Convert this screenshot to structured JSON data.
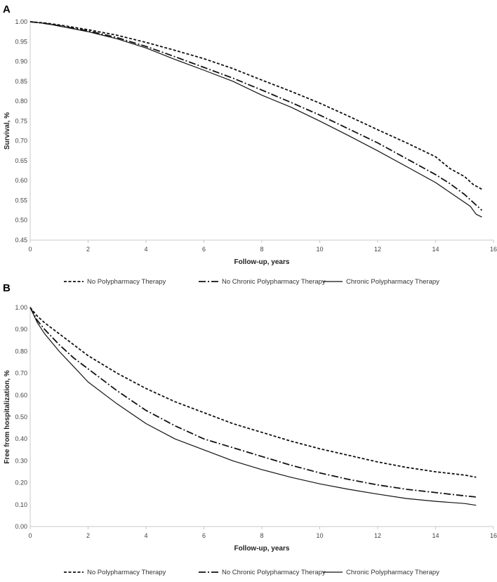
{
  "figure": {
    "chart_data": [
      {
        "type": "line",
        "panel": "A",
        "xlabel": "Follow-up, years",
        "ylabel": "Survival, %",
        "xlim": [
          0,
          16
        ],
        "ylim": [
          0.45,
          1.0
        ],
        "x_ticks": [
          "0",
          "2",
          "4",
          "6",
          "8",
          "10",
          "12",
          "14",
          "16"
        ],
        "y_ticks": [
          "0.45",
          "0.50",
          "0.55",
          "0.60",
          "0.65",
          "0.70",
          "0.75",
          "0.80",
          "0.85",
          "0.90",
          "0.95",
          "1.00"
        ],
        "legend_position": "bottom",
        "grid": false,
        "series": [
          {
            "name": "No Polypharmacy Therapy",
            "dash": "dashed",
            "x": [
              0,
              0.5,
              1,
              2,
              3,
              4,
              5,
              6,
              7,
              8,
              9,
              10,
              11,
              12,
              13,
              14,
              14.5,
              15,
              15.3,
              15.6
            ],
            "y": [
              1.0,
              0.997,
              0.992,
              0.98,
              0.966,
              0.948,
              0.928,
              0.907,
              0.882,
              0.853,
              0.825,
              0.795,
              0.762,
              0.728,
              0.695,
              0.66,
              0.63,
              0.61,
              0.59,
              0.578
            ]
          },
          {
            "name": "No Chronic Polypharmacy Therapy",
            "dash": "dashdot",
            "x": [
              0,
              0.5,
              1,
              2,
              3,
              4,
              5,
              6,
              7,
              8,
              9,
              10,
              11,
              12,
              13,
              14,
              14.5,
              15,
              15.3,
              15.6
            ],
            "y": [
              1.0,
              0.996,
              0.99,
              0.977,
              0.96,
              0.938,
              0.912,
              0.885,
              0.858,
              0.828,
              0.797,
              0.765,
              0.73,
              0.695,
              0.655,
              0.615,
              0.592,
              0.565,
              0.545,
              0.525
            ]
          },
          {
            "name": "Chronic Polypharmacy Therapy",
            "dash": "solid",
            "x": [
              0,
              0.5,
              1,
              2,
              3,
              4,
              5,
              6,
              7,
              8,
              9,
              10,
              11,
              12,
              13,
              14,
              14.5,
              15,
              15.2,
              15.4,
              15.6
            ],
            "y": [
              1.0,
              0.996,
              0.989,
              0.975,
              0.957,
              0.934,
              0.905,
              0.878,
              0.85,
              0.815,
              0.785,
              0.75,
              0.713,
              0.675,
              0.635,
              0.595,
              0.57,
              0.545,
              0.535,
              0.515,
              0.508
            ]
          }
        ]
      },
      {
        "type": "line",
        "panel": "B",
        "xlabel": "Follow-up, years",
        "ylabel": "Free from hospitalization, %",
        "xlim": [
          0,
          16
        ],
        "ylim": [
          0.0,
          1.0
        ],
        "x_ticks": [
          "0",
          "2",
          "4",
          "6",
          "8",
          "10",
          "12",
          "14",
          "16"
        ],
        "y_ticks": [
          "0.00",
          "0.10",
          "0.20",
          "0.30",
          "0.40",
          "0.50",
          "0.60",
          "0.70",
          "0.80",
          "0.90",
          "1.00"
        ],
        "legend_position": "bottom",
        "grid": false,
        "series": [
          {
            "name": "No Polypharmacy Therapy",
            "dash": "dashed",
            "x": [
              0,
              0.25,
              0.5,
              1,
              1.5,
              2,
              3,
              4,
              5,
              6,
              7,
              8,
              9,
              10,
              11,
              12,
              13,
              14,
              15,
              15.4
            ],
            "y": [
              1.0,
              0.96,
              0.93,
              0.88,
              0.83,
              0.78,
              0.7,
              0.63,
              0.57,
              0.52,
              0.47,
              0.43,
              0.39,
              0.355,
              0.325,
              0.295,
              0.27,
              0.25,
              0.235,
              0.225
            ]
          },
          {
            "name": "No Chronic Polypharmacy Therapy",
            "dash": "dashdot",
            "x": [
              0,
              0.25,
              0.5,
              1,
              1.5,
              2,
              3,
              4,
              5,
              6,
              7,
              8,
              9,
              10,
              11,
              12,
              13,
              14,
              15,
              15.4
            ],
            "y": [
              1.0,
              0.94,
              0.9,
              0.83,
              0.77,
              0.72,
              0.62,
              0.53,
              0.46,
              0.4,
              0.36,
              0.32,
              0.28,
              0.245,
              0.215,
              0.19,
              0.17,
              0.155,
              0.14,
              0.135
            ]
          },
          {
            "name": "Chronic Polypharmacy Therapy",
            "dash": "solid",
            "x": [
              0,
              0.25,
              0.5,
              1,
              1.5,
              2,
              3,
              4,
              5,
              6,
              7,
              8,
              9,
              10,
              11,
              12,
              13,
              14,
              15,
              15.4
            ],
            "y": [
              1.0,
              0.93,
              0.88,
              0.8,
              0.73,
              0.66,
              0.56,
              0.47,
              0.4,
              0.35,
              0.3,
              0.26,
              0.225,
              0.195,
              0.17,
              0.148,
              0.128,
              0.115,
              0.105,
              0.097
            ]
          }
        ]
      }
    ]
  }
}
